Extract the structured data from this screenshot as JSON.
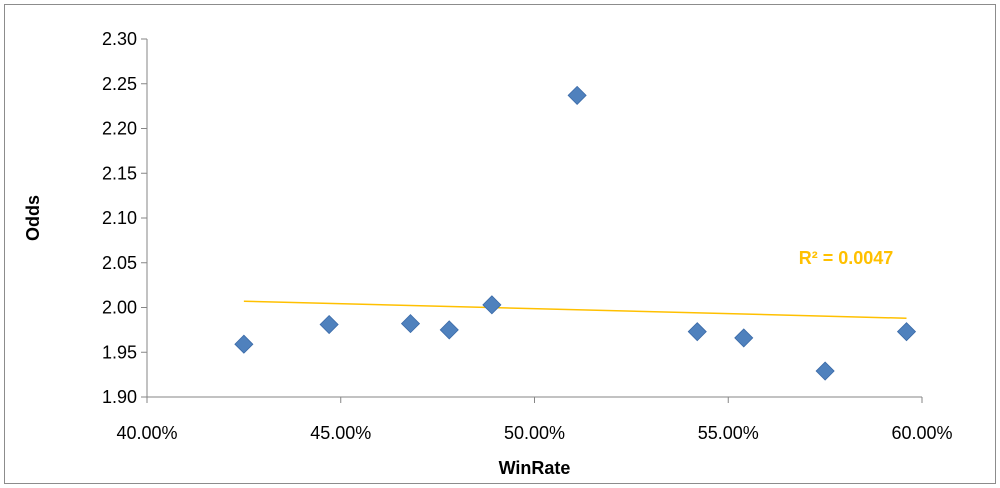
{
  "chart_data": {
    "type": "scatter",
    "title": "",
    "xlabel": "WinRate",
    "ylabel": "Odds",
    "xlim": [
      0.4,
      0.6
    ],
    "ylim": [
      1.9,
      2.3
    ],
    "x_ticks": [
      0.4,
      0.45,
      0.5,
      0.55,
      0.6
    ],
    "y_ticks": [
      1.9,
      1.95,
      2.0,
      2.05,
      2.1,
      2.15,
      2.2,
      2.25,
      2.3
    ],
    "x_tick_labels": [
      "40.00%",
      "45.00%",
      "50.00%",
      "55.00%",
      "60.00%"
    ],
    "y_tick_labels": [
      "1.90",
      "1.95",
      "2.00",
      "2.05",
      "2.10",
      "2.15",
      "2.20",
      "2.25",
      "2.30"
    ],
    "grid": false,
    "marker": "diamond",
    "marker_color": "#4f81bd",
    "series": [
      {
        "x": [
          0.425,
          0.447,
          0.468,
          0.478,
          0.489,
          0.511,
          0.542,
          0.554,
          0.575,
          0.596
        ],
        "y": [
          1.959,
          1.981,
          1.982,
          1.975,
          2.003,
          2.237,
          1.973,
          1.966,
          1.929,
          1.973
        ]
      }
    ],
    "trendline": {
      "type": "linear",
      "color": "#ffc000",
      "x": [
        0.425,
        0.596
      ],
      "y": [
        2.007,
        1.988
      ],
      "r2_label": "R² = 0.0047"
    }
  }
}
